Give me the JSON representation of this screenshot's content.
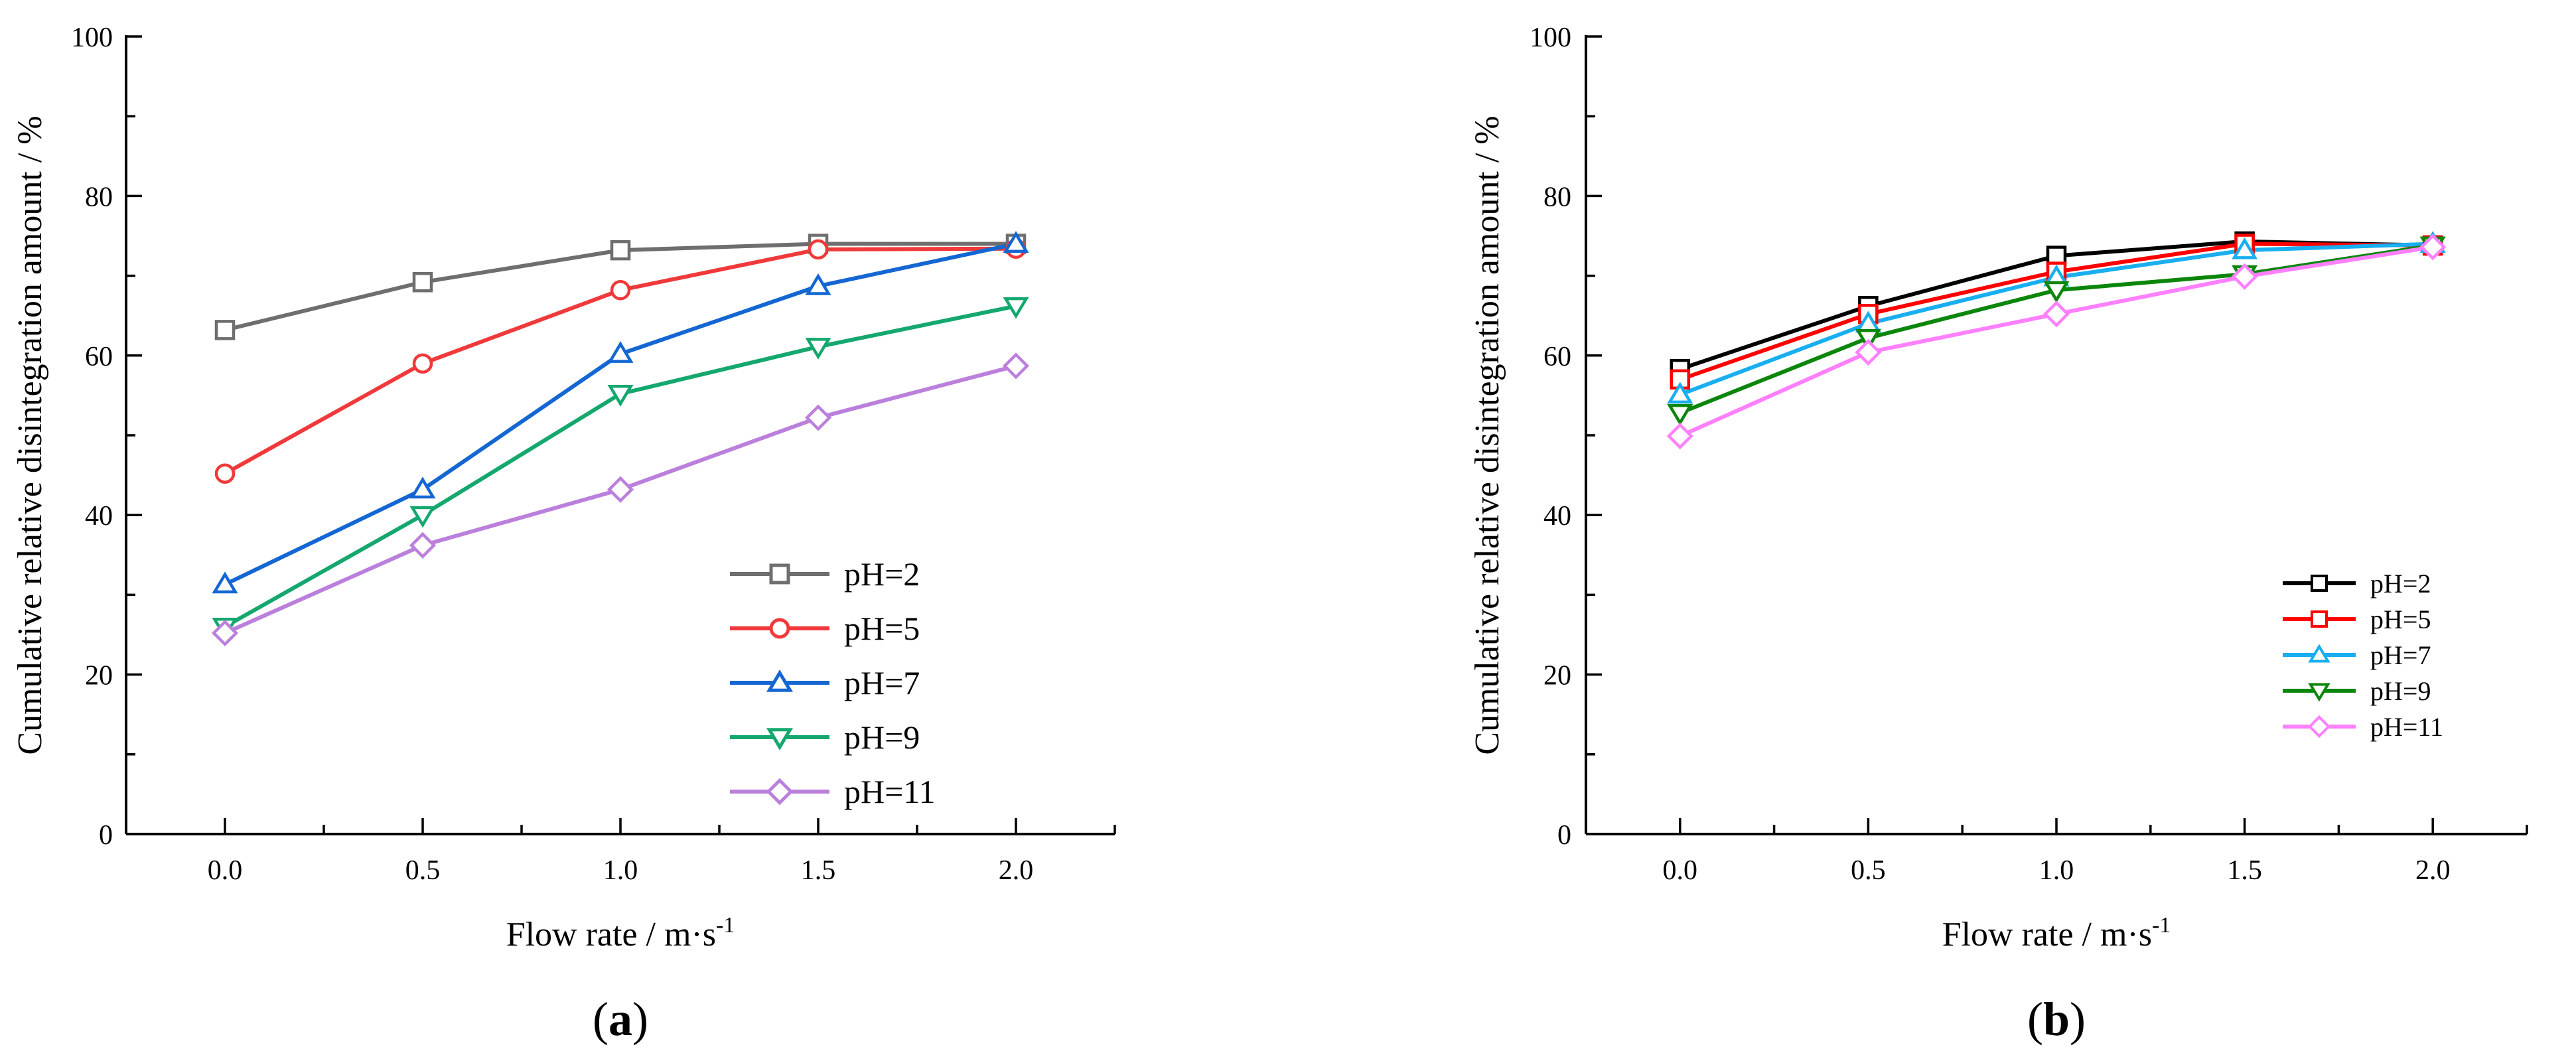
{
  "chart_data": [
    {
      "type": "line",
      "panel": "(a)",
      "panel_letter": "a",
      "xlabel": "Flow rate / m·s",
      "xlabel_sup": "-1",
      "ylabel": "Cumulative relative disintegration amount  / %",
      "x": [
        0.0,
        0.5,
        1.0,
        1.5,
        2.0
      ],
      "xticks": [
        "0.0",
        "0.5",
        "1.0",
        "1.5",
        "2.0"
      ],
      "xlim": [
        -0.25,
        2.25
      ],
      "ylim": [
        0,
        100
      ],
      "yticks": [
        "0",
        "20",
        "40",
        "60",
        "80",
        "100"
      ],
      "legend_position": "lower-right",
      "series": [
        {
          "name": "pH=2",
          "color": "#6e6e6e",
          "marker": "square",
          "values": [
            63.2,
            69.2,
            73.2,
            74.0,
            74.0
          ]
        },
        {
          "name": "pH=5",
          "color": "#f0393a",
          "marker": "circle",
          "values": [
            45.2,
            59.0,
            68.2,
            73.3,
            73.4
          ]
        },
        {
          "name": "pH=7",
          "color": "#1467d2",
          "marker": "triangle",
          "values": [
            31.3,
            43.2,
            60.2,
            68.7,
            74.0
          ]
        },
        {
          "name": "pH=9",
          "color": "#14a86e",
          "marker": "triangle-down",
          "values": [
            26.0,
            40.0,
            55.2,
            61.1,
            66.2
          ]
        },
        {
          "name": "pH=11",
          "color": "#bb7fdc",
          "marker": "diamond",
          "values": [
            25.2,
            36.2,
            43.2,
            52.2,
            58.7
          ]
        }
      ]
    },
    {
      "type": "line",
      "panel": "(b)",
      "panel_letter": "b",
      "xlabel": "Flow rate / m·s",
      "xlabel_sup": "-1",
      "ylabel": "Cumulative relative disintegration amount  / %",
      "x": [
        0.0,
        0.5,
        1.0,
        1.5,
        2.0
      ],
      "xticks": [
        "0.0",
        "0.5",
        "1.0",
        "1.5",
        "2.0"
      ],
      "xlim": [
        -0.25,
        2.25
      ],
      "ylim": [
        0,
        100
      ],
      "yticks": [
        "0",
        "20",
        "40",
        "60",
        "80",
        "100"
      ],
      "legend_position": "lower-right",
      "series": [
        {
          "name": "pH=2",
          "color": "#000000",
          "marker": "square",
          "values": [
            58.3,
            66.2,
            72.5,
            74.3,
            73.8
          ]
        },
        {
          "name": "pH=5",
          "color": "#ff0000",
          "marker": "square",
          "values": [
            57.0,
            65.2,
            70.5,
            74.0,
            73.8
          ]
        },
        {
          "name": "pH=7",
          "color": "#18aef0",
          "marker": "triangle",
          "values": [
            55.1,
            64.0,
            69.8,
            73.2,
            74.0
          ]
        },
        {
          "name": "pH=9",
          "color": "#0b860b",
          "marker": "triangle-down",
          "values": [
            52.8,
            62.2,
            68.2,
            70.2,
            73.8
          ]
        },
        {
          "name": "pH=11",
          "color": "#ff80ff",
          "marker": "diamond",
          "values": [
            49.9,
            60.4,
            65.2,
            69.9,
            73.6
          ]
        }
      ]
    }
  ]
}
